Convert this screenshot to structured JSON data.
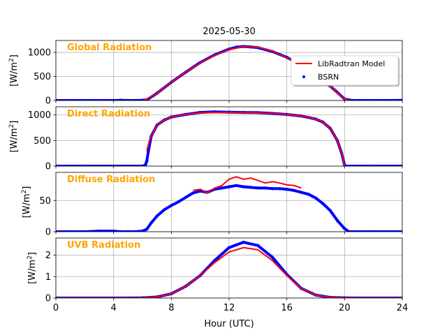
{
  "figure": {
    "title": "2025-05-30",
    "xlabel": "Hour (UTC)",
    "x_ticks": [
      0,
      4,
      8,
      12,
      16,
      20,
      24
    ],
    "x_tick_labels": [
      "0",
      "4",
      "8",
      "12",
      "16",
      "20",
      "24"
    ]
  },
  "legend": {
    "placement": "right of upper panel",
    "entries": [
      {
        "label": "LibRadtran Model",
        "color": "#ff0000",
        "marker": "line"
      },
      {
        "label": "BSRN",
        "color": "#0000ff",
        "marker": "dot"
      }
    ]
  },
  "colors": {
    "model": "#ff0000",
    "measured": "#0000ff",
    "panel_label": "#ffa500",
    "grid": "#b0b0b0"
  },
  "chart_data": [
    {
      "type": "line",
      "panel_label": "Global Radiation",
      "ylabel": "[W/m²]",
      "ylim": [
        0,
        1250
      ],
      "xlim": [
        0,
        24
      ],
      "y_ticks": [
        0,
        500,
        1000
      ],
      "y_tick_labels": [
        "0",
        "500",
        "1000"
      ],
      "grid": true,
      "series": [
        {
          "name": "LibRadtran Model",
          "x": [
            6.1,
            7,
            8,
            9,
            10,
            11,
            12,
            13,
            14,
            15,
            16,
            17,
            18,
            19,
            20,
            20.3
          ],
          "y": [
            0,
            150,
            380,
            590,
            780,
            940,
            1060,
            1120,
            1110,
            1030,
            890,
            730,
            520,
            300,
            30,
            0
          ]
        },
        {
          "name": "BSRN",
          "x": [
            0,
            1,
            2,
            3,
            4,
            4.5,
            5,
            5.5,
            6,
            6.3,
            7,
            8,
            9,
            10,
            11,
            12,
            12.5,
            13,
            13.5,
            14,
            15,
            16,
            17,
            18,
            19,
            19.5,
            20,
            20.5,
            21,
            22,
            23,
            24
          ],
          "y": [
            0,
            0,
            0,
            0,
            0,
            5,
            0,
            0,
            5,
            15,
            150,
            380,
            590,
            790,
            950,
            1070,
            1110,
            1125,
            1115,
            1100,
            1020,
            900,
            730,
            540,
            300,
            170,
            30,
            0,
            0,
            0,
            0,
            5
          ]
        }
      ]
    },
    {
      "type": "line",
      "panel_label": "Direct Radiation",
      "ylabel": "[W/m²]",
      "ylim": [
        0,
        1160
      ],
      "xlim": [
        0,
        24
      ],
      "y_ticks": [
        0,
        500,
        1000
      ],
      "y_tick_labels": [
        "0",
        "500",
        "1000"
      ],
      "grid": true,
      "series": [
        {
          "name": "LibRadtran Model",
          "x": [
            6.3,
            6.5,
            7,
            7.5,
            8,
            9,
            10,
            11,
            12,
            13,
            14,
            15,
            16,
            17,
            18,
            18.5,
            19,
            19.5,
            19.8,
            20
          ],
          "y": [
            300,
            520,
            800,
            900,
            960,
            1010,
            1040,
            1050,
            1050,
            1045,
            1040,
            1030,
            1010,
            980,
            920,
            860,
            740,
            500,
            250,
            0
          ]
        },
        {
          "name": "BSRN",
          "x": [
            0,
            2,
            4,
            6,
            6.2,
            6.3,
            6.4,
            6.6,
            7,
            7.5,
            8,
            9,
            10,
            11,
            12,
            13,
            14,
            15,
            16,
            17,
            18,
            18.5,
            19,
            19.5,
            19.8,
            20,
            20.1,
            22,
            24
          ],
          "y": [
            0,
            0,
            0,
            0,
            20,
            100,
            280,
            580,
            800,
            900,
            960,
            1010,
            1050,
            1060,
            1055,
            1050,
            1045,
            1030,
            1010,
            980,
            920,
            860,
            740,
            500,
            250,
            20,
            0,
            0,
            0
          ]
        }
      ]
    },
    {
      "type": "line",
      "panel_label": "Diffuse Radiation",
      "ylabel": "[W/m²]",
      "ylim": [
        0,
        95
      ],
      "xlim": [
        0,
        24
      ],
      "y_ticks": [
        0,
        50
      ],
      "y_tick_labels": [
        "0",
        "50"
      ],
      "grid": true,
      "series": [
        {
          "name": "LibRadtran Model",
          "x": [
            9.5,
            10,
            10.5,
            11,
            11.5,
            12,
            12.5,
            13,
            13.5,
            14,
            14.5,
            15,
            15.5,
            16,
            16.5,
            17
          ],
          "y": [
            66,
            68,
            62,
            70,
            74,
            84,
            88,
            84,
            86,
            82,
            78,
            80,
            78,
            75,
            74,
            70
          ]
        },
        {
          "name": "BSRN",
          "x": [
            0,
            1,
            2,
            3,
            4,
            4.5,
            5,
            5.5,
            6,
            6.3,
            6.6,
            7,
            7.5,
            8,
            8.5,
            9,
            9.5,
            10,
            10.5,
            11,
            11.5,
            12,
            12.5,
            13,
            13.5,
            14,
            14.5,
            15,
            15.5,
            16,
            16.5,
            17,
            17.5,
            18,
            18.5,
            19,
            19.5,
            20,
            20.3,
            22,
            24
          ],
          "y": [
            0,
            0,
            0,
            1,
            1,
            0,
            0,
            0,
            1,
            4,
            14,
            25,
            35,
            42,
            48,
            55,
            62,
            65,
            63,
            68,
            70,
            72,
            74,
            72,
            71,
            70,
            70,
            69,
            69,
            68,
            66,
            63,
            60,
            54,
            45,
            34,
            18,
            5,
            0,
            0,
            0
          ]
        }
      ]
    },
    {
      "type": "line",
      "panel_label": "UVB Radiation",
      "ylabel": "[W/m²]",
      "ylim": [
        0,
        2.8
      ],
      "xlim": [
        0,
        24
      ],
      "y_ticks": [
        0,
        1,
        2
      ],
      "y_tick_labels": [
        "0",
        "1",
        "2"
      ],
      "grid": true,
      "series": [
        {
          "name": "LibRadtran Model",
          "x": [
            0,
            5,
            6,
            7,
            8,
            9,
            10,
            11,
            12,
            13,
            14,
            15,
            16,
            17,
            18,
            19,
            20,
            21,
            24
          ],
          "y": [
            0,
            0,
            0.01,
            0.05,
            0.2,
            0.55,
            1.05,
            1.65,
            2.15,
            2.35,
            2.25,
            1.75,
            1.05,
            0.45,
            0.14,
            0.03,
            0.005,
            0,
            0
          ]
        },
        {
          "name": "BSRN",
          "x": [
            0,
            5,
            6,
            7,
            8,
            9,
            10,
            11,
            12,
            13,
            14,
            15,
            16,
            17,
            18,
            19,
            20,
            21,
            24
          ],
          "y": [
            0,
            0,
            0.01,
            0.05,
            0.2,
            0.55,
            1.05,
            1.75,
            2.35,
            2.6,
            2.45,
            1.9,
            1.1,
            0.45,
            0.14,
            0.03,
            0.005,
            0,
            0
          ]
        }
      ]
    }
  ]
}
